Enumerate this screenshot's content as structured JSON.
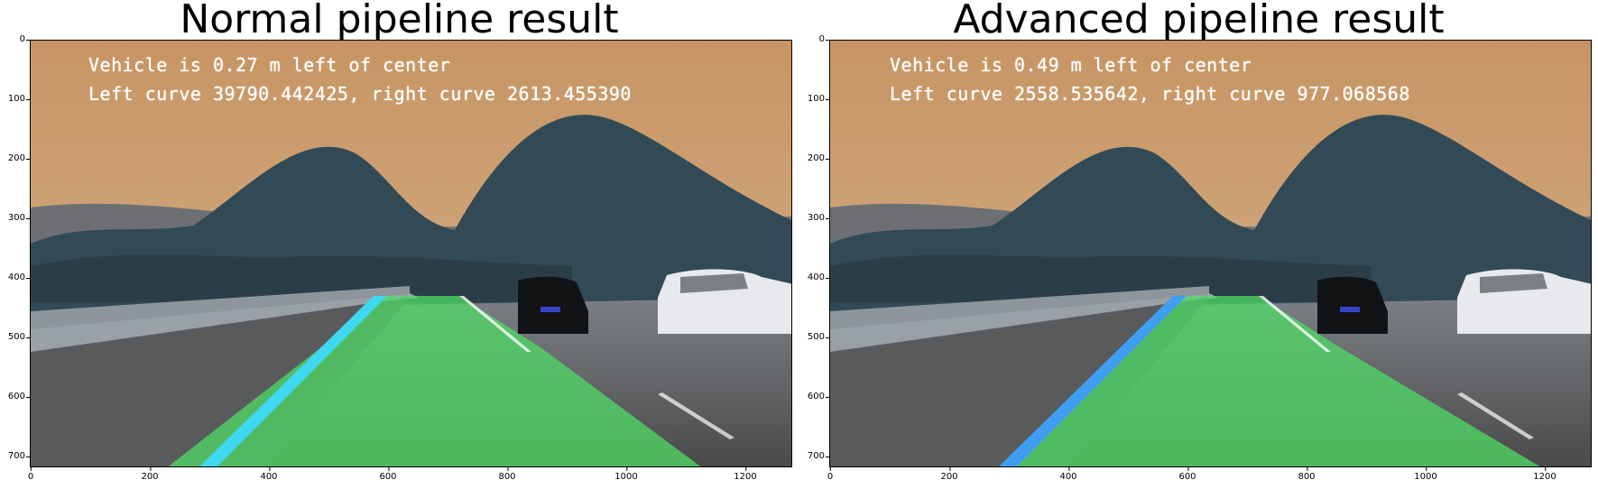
{
  "panels": [
    {
      "title": "Normal pipeline result",
      "line1": "Vehicle is 0.27 m left of center",
      "line2": "Left curve 39790.442425, right curve 2613.455390"
    },
    {
      "title": "Advanced pipeline result",
      "line1": "Vehicle is 0.49 m left of center",
      "line2": "Left curve 2558.535642, right curve 977.068568"
    }
  ],
  "axes": {
    "yticks": [
      "0",
      "100",
      "200",
      "300",
      "400",
      "500",
      "600",
      "700"
    ],
    "xticks": [
      "0",
      "200",
      "400",
      "600",
      "800",
      "1000",
      "1200"
    ],
    "xlim": [
      0,
      1280
    ],
    "ylim": [
      720,
      0
    ]
  },
  "colors": {
    "sky": "#c79563",
    "lane_fill": "#4fdc66",
    "lane_line": "#3fd8f0"
  }
}
